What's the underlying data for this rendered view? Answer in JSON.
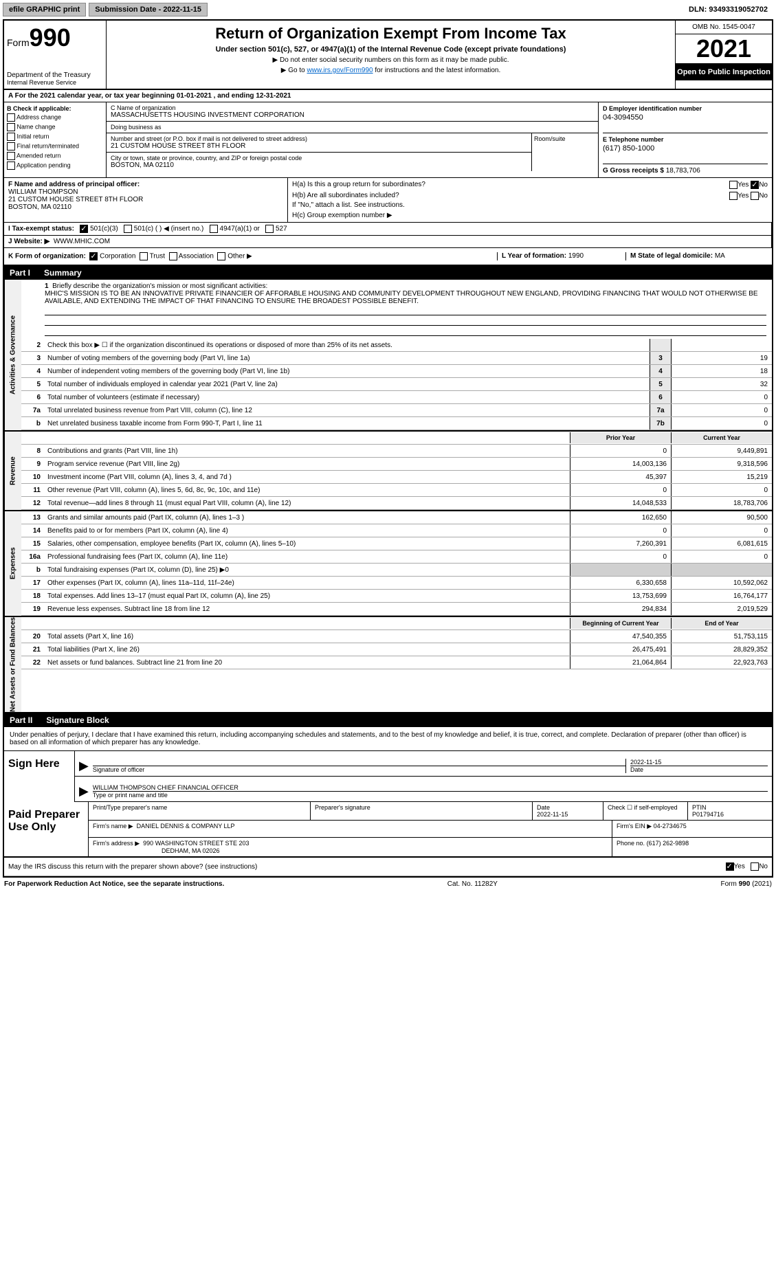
{
  "topbar": {
    "efile_label": "efile GRAPHIC print",
    "submission_label": "Submission Date - 2022-11-15",
    "dln_label": "DLN: 93493319052702"
  },
  "header": {
    "form_prefix": "Form",
    "form_number": "990",
    "title": "Return of Organization Exempt From Income Tax",
    "subtitle": "Under section 501(c), 527, or 4947(a)(1) of the Internal Revenue Code (except private foundations)",
    "instr1": "▶ Do not enter social security numbers on this form as it may be made public.",
    "instr2_prefix": "▶ Go to ",
    "instr2_link": "www.irs.gov/Form990",
    "instr2_suffix": " for instructions and the latest information.",
    "dept": "Department of the Treasury",
    "dept2": "Internal Revenue Service",
    "omb": "OMB No. 1545-0047",
    "year": "2021",
    "open_public": "Open to Public Inspection"
  },
  "row_a": {
    "text": "A For the 2021 calendar year, or tax year beginning 01-01-2021    , and ending 12-31-2021"
  },
  "col_b": {
    "heading": "B Check if applicable:",
    "items": [
      "Address change",
      "Name change",
      "Initial return",
      "Final return/terminated",
      "Amended return",
      "Application pending"
    ]
  },
  "col_c": {
    "name_label": "C Name of organization",
    "name": "MASSACHUSETTS HOUSING INVESTMENT CORPORATION",
    "dba_label": "Doing business as",
    "dba": "",
    "street_label": "Number and street (or P.O. box if mail is not delivered to street address)",
    "street": "21 CUSTOM HOUSE STREET 8TH FLOOR",
    "room_label": "Room/suite",
    "city_label": "City or town, state or province, country, and ZIP or foreign postal code",
    "city": "BOSTON, MA  02110"
  },
  "col_d": {
    "label": "D Employer identification number",
    "value": "04-3094550"
  },
  "col_e": {
    "label": "E Telephone number",
    "value": "(617) 850-1000"
  },
  "col_g": {
    "label": "G Gross receipts $",
    "value": "18,783,706"
  },
  "col_f": {
    "label": "F Name and address of principal officer:",
    "name": "WILLIAM THOMPSON",
    "addr1": "21 CUSTOM HOUSE STREET 8TH FLOOR",
    "addr2": "BOSTON, MA  02110"
  },
  "col_h": {
    "ha_label": "H(a)  Is this a group return for subordinates?",
    "hb_label": "H(b)  Are all subordinates included?",
    "hb_note": "If \"No,\" attach a list. See instructions.",
    "hc_label": "H(c)  Group exemption number ▶",
    "yes": "Yes",
    "no": "No"
  },
  "row_i": {
    "label": "I  Tax-exempt status:",
    "opt1": "501(c)(3)",
    "opt2": "501(c) (   ) ◀ (insert no.)",
    "opt3": "4947(a)(1) or",
    "opt4": "527"
  },
  "row_j": {
    "label": "J  Website: ▶",
    "value": "WWW.MHIC.COM"
  },
  "row_k": {
    "label": "K Form of organization:",
    "opts": [
      "Corporation",
      "Trust",
      "Association",
      "Other ▶"
    ],
    "l_label": "L Year of formation:",
    "l_value": "1990",
    "m_label": "M State of legal domicile:",
    "m_value": "MA"
  },
  "part1": {
    "label": "Part I",
    "title": "Summary"
  },
  "mission": {
    "num": "1",
    "label": "Briefly describe the organization's mission or most significant activities:",
    "text": "MHIC'S MISSION IS TO BE AN INNOVATIVE PRIVATE FINANCIER OF AFFORABLE HOUSING AND COMMUNITY DEVELOPMENT THROUGHOUT NEW ENGLAND, PROVIDING FINANCING THAT WOULD NOT OTHERWISE BE AVAILABLE, AND EXTENDING THE IMPACT OF THAT FINANCING TO ENSURE THE BROADEST POSSIBLE BENEFIT."
  },
  "governance_lines": [
    {
      "num": "2",
      "text": "Check this box ▶ ☐ if the organization discontinued its operations or disposed of more than 25% of its net assets.",
      "box": "",
      "val": ""
    },
    {
      "num": "3",
      "text": "Number of voting members of the governing body (Part VI, line 1a)",
      "box": "3",
      "val": "19"
    },
    {
      "num": "4",
      "text": "Number of independent voting members of the governing body (Part VI, line 1b)",
      "box": "4",
      "val": "18"
    },
    {
      "num": "5",
      "text": "Total number of individuals employed in calendar year 2021 (Part V, line 2a)",
      "box": "5",
      "val": "32"
    },
    {
      "num": "6",
      "text": "Total number of volunteers (estimate if necessary)",
      "box": "6",
      "val": "0"
    },
    {
      "num": "7a",
      "text": "Total unrelated business revenue from Part VIII, column (C), line 12",
      "box": "7a",
      "val": "0"
    },
    {
      "num": "b",
      "text": "Net unrelated business taxable income from Form 990-T, Part I, line 11",
      "box": "7b",
      "val": "0"
    }
  ],
  "col_headers": {
    "prior": "Prior Year",
    "current": "Current Year"
  },
  "revenue_lines": [
    {
      "num": "8",
      "text": "Contributions and grants (Part VIII, line 1h)",
      "prior": "0",
      "current": "9,449,891"
    },
    {
      "num": "9",
      "text": "Program service revenue (Part VIII, line 2g)",
      "prior": "14,003,136",
      "current": "9,318,596"
    },
    {
      "num": "10",
      "text": "Investment income (Part VIII, column (A), lines 3, 4, and 7d )",
      "prior": "45,397",
      "current": "15,219"
    },
    {
      "num": "11",
      "text": "Other revenue (Part VIII, column (A), lines 5, 6d, 8c, 9c, 10c, and 11e)",
      "prior": "0",
      "current": "0"
    },
    {
      "num": "12",
      "text": "Total revenue—add lines 8 through 11 (must equal Part VIII, column (A), line 12)",
      "prior": "14,048,533",
      "current": "18,783,706"
    }
  ],
  "expense_lines": [
    {
      "num": "13",
      "text": "Grants and similar amounts paid (Part IX, column (A), lines 1–3 )",
      "prior": "162,650",
      "current": "90,500"
    },
    {
      "num": "14",
      "text": "Benefits paid to or for members (Part IX, column (A), line 4)",
      "prior": "0",
      "current": "0"
    },
    {
      "num": "15",
      "text": "Salaries, other compensation, employee benefits (Part IX, column (A), lines 5–10)",
      "prior": "7,260,391",
      "current": "6,081,615"
    },
    {
      "num": "16a",
      "text": "Professional fundraising fees (Part IX, column (A), line 11e)",
      "prior": "0",
      "current": "0"
    },
    {
      "num": "b",
      "text": "Total fundraising expenses (Part IX, column (D), line 25) ▶0",
      "prior": "",
      "current": "",
      "shaded": true
    },
    {
      "num": "17",
      "text": "Other expenses (Part IX, column (A), lines 11a–11d, 11f–24e)",
      "prior": "6,330,658",
      "current": "10,592,062"
    },
    {
      "num": "18",
      "text": "Total expenses. Add lines 13–17 (must equal Part IX, column (A), line 25)",
      "prior": "13,753,699",
      "current": "16,764,177"
    },
    {
      "num": "19",
      "text": "Revenue less expenses. Subtract line 18 from line 12",
      "prior": "294,834",
      "current": "2,019,529"
    }
  ],
  "netassets_headers": {
    "begin": "Beginning of Current Year",
    "end": "End of Year"
  },
  "netassets_lines": [
    {
      "num": "20",
      "text": "Total assets (Part X, line 16)",
      "prior": "47,540,355",
      "current": "51,753,115"
    },
    {
      "num": "21",
      "text": "Total liabilities (Part X, line 26)",
      "prior": "26,475,491",
      "current": "28,829,352"
    },
    {
      "num": "22",
      "text": "Net assets or fund balances. Subtract line 21 from line 20",
      "prior": "21,064,864",
      "current": "22,923,763"
    }
  ],
  "part2": {
    "label": "Part II",
    "title": "Signature Block"
  },
  "sig": {
    "perjury": "Under penalties of perjury, I declare that I have examined this return, including accompanying schedules and statements, and to the best of my knowledge and belief, it is true, correct, and complete. Declaration of preparer (other than officer) is based on all information of which preparer has any knowledge.",
    "sign_here": "Sign Here",
    "sig_officer": "Signature of officer",
    "date_label": "Date",
    "date_val": "2022-11-15",
    "name_title": "WILLIAM THOMPSON  CHIEF FINANCIAL OFFICER",
    "type_label": "Type or print name and title"
  },
  "preparer": {
    "label": "Paid Preparer Use Only",
    "print_name_label": "Print/Type preparer's name",
    "sig_label": "Preparer's signature",
    "date_label": "Date",
    "date_val": "2022-11-15",
    "check_label": "Check ☐ if self-employed",
    "ptin_label": "PTIN",
    "ptin_val": "P01794716",
    "firm_name_label": "Firm's name    ▶",
    "firm_name": "DANIEL DENNIS & COMPANY LLP",
    "firm_ein_label": "Firm's EIN ▶",
    "firm_ein": "04-2734675",
    "firm_addr_label": "Firm's address ▶",
    "firm_addr1": "990 WASHINGTON STREET STE 203",
    "firm_addr2": "DEDHAM, MA  02026",
    "phone_label": "Phone no.",
    "phone": "(617) 262-9898"
  },
  "discuss": {
    "text": "May the IRS discuss this return with the preparer shown above? (see instructions)",
    "yes": "Yes",
    "no": "No"
  },
  "footer": {
    "left": "For Paperwork Reduction Act Notice, see the separate instructions.",
    "center": "Cat. No. 11282Y",
    "right": "Form 990 (2021)"
  },
  "side_labels": {
    "governance": "Activities & Governance",
    "revenue": "Revenue",
    "expenses": "Expenses",
    "netassets": "Net Assets or Fund Balances"
  }
}
